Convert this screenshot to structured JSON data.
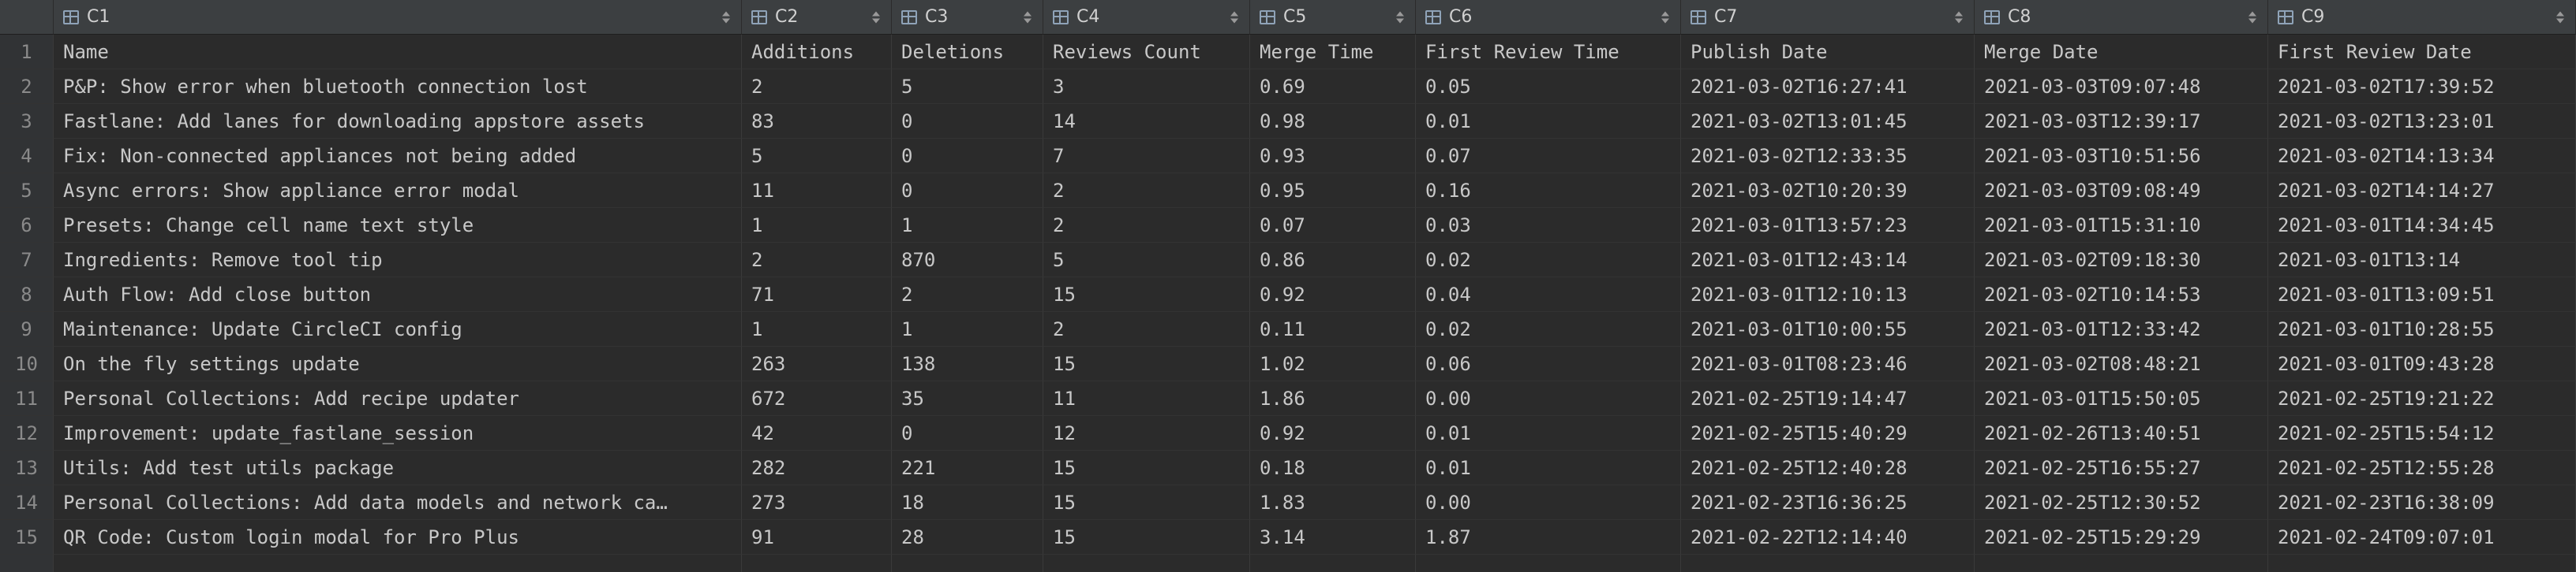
{
  "columns": [
    "C1",
    "C2",
    "C3",
    "C4",
    "C5",
    "C6",
    "C7",
    "C8",
    "C9"
  ],
  "rows": [
    {
      "num": "1",
      "cells": [
        "Name",
        "Additions",
        "Deletions",
        "Reviews Count",
        "Merge Time",
        "First Review Time",
        "Publish Date",
        "Merge Date",
        "First Review Date"
      ]
    },
    {
      "num": "2",
      "cells": [
        "P&P: Show error when bluetooth connection lost",
        "2",
        "5",
        "3",
        "0.69",
        "0.05",
        "2021-03-02T16:27:41",
        "2021-03-03T09:07:48",
        "2021-03-02T17:39:52"
      ]
    },
    {
      "num": "3",
      "cells": [
        "Fastlane: Add lanes for downloading appstore assets",
        "83",
        "0",
        "14",
        "0.98",
        "0.01",
        "2021-03-02T13:01:45",
        "2021-03-03T12:39:17",
        "2021-03-02T13:23:01"
      ]
    },
    {
      "num": "4",
      "cells": [
        "Fix: Non-connected appliances not being added",
        "5",
        "0",
        "7",
        "0.93",
        "0.07",
        "2021-03-02T12:33:35",
        "2021-03-03T10:51:56",
        "2021-03-02T14:13:34"
      ]
    },
    {
      "num": "5",
      "cells": [
        "Async errors: Show appliance error modal",
        "11",
        "0",
        "2",
        "0.95",
        "0.16",
        "2021-03-02T10:20:39",
        "2021-03-03T09:08:49",
        "2021-03-02T14:14:27"
      ]
    },
    {
      "num": "6",
      "cells": [
        "Presets: Change cell name text style",
        "1",
        "1",
        "2",
        "0.07",
        "0.03",
        "2021-03-01T13:57:23",
        "2021-03-01T15:31:10",
        "2021-03-01T14:34:45"
      ]
    },
    {
      "num": "7",
      "cells": [
        "Ingredients: Remove tool tip",
        "2",
        "870",
        "5",
        "0.86",
        "0.02",
        "2021-03-01T12:43:14",
        "2021-03-02T09:18:30",
        "2021-03-01T13:14"
      ]
    },
    {
      "num": "8",
      "cells": [
        "Auth Flow: Add close button",
        "71",
        "2",
        "15",
        "0.92",
        "0.04",
        "2021-03-01T12:10:13",
        "2021-03-02T10:14:53",
        "2021-03-01T13:09:51"
      ]
    },
    {
      "num": "9",
      "cells": [
        "Maintenance: Update CircleCI config",
        "1",
        "1",
        "2",
        "0.11",
        "0.02",
        "2021-03-01T10:00:55",
        "2021-03-01T12:33:42",
        "2021-03-01T10:28:55"
      ]
    },
    {
      "num": "10",
      "cells": [
        "On the fly settings update",
        "263",
        "138",
        "15",
        "1.02",
        "0.06",
        "2021-03-01T08:23:46",
        "2021-03-02T08:48:21",
        "2021-03-01T09:43:28"
      ]
    },
    {
      "num": "11",
      "cells": [
        "Personal Collections: Add recipe updater",
        "672",
        "35",
        "11",
        "1.86",
        "0.00",
        "2021-02-25T19:14:47",
        "2021-03-01T15:50:05",
        "2021-02-25T19:21:22"
      ]
    },
    {
      "num": "12",
      "cells": [
        "Improvement: update_fastlane_session",
        "42",
        "0",
        "12",
        "0.92",
        "0.01",
        "2021-02-25T15:40:29",
        "2021-02-26T13:40:51",
        "2021-02-25T15:54:12"
      ]
    },
    {
      "num": "13",
      "cells": [
        "Utils: Add test utils package",
        "282",
        "221",
        "15",
        "0.18",
        "0.01",
        "2021-02-25T12:40:28",
        "2021-02-25T16:55:27",
        "2021-02-25T12:55:28"
      ]
    },
    {
      "num": "14",
      "cells": [
        "Personal Collections: Add data models and network ca…",
        "273",
        "18",
        "15",
        "1.83",
        "0.00",
        "2021-02-23T16:36:25",
        "2021-02-25T12:30:52",
        "2021-02-23T16:38:09"
      ]
    },
    {
      "num": "15",
      "cells": [
        "QR Code: Custom login modal for Pro Plus",
        "91",
        "28",
        "15",
        "3.14",
        "1.87",
        "2021-02-22T12:14:40",
        "2021-02-25T15:29:29",
        "2021-02-24T09:07:01"
      ]
    }
  ]
}
